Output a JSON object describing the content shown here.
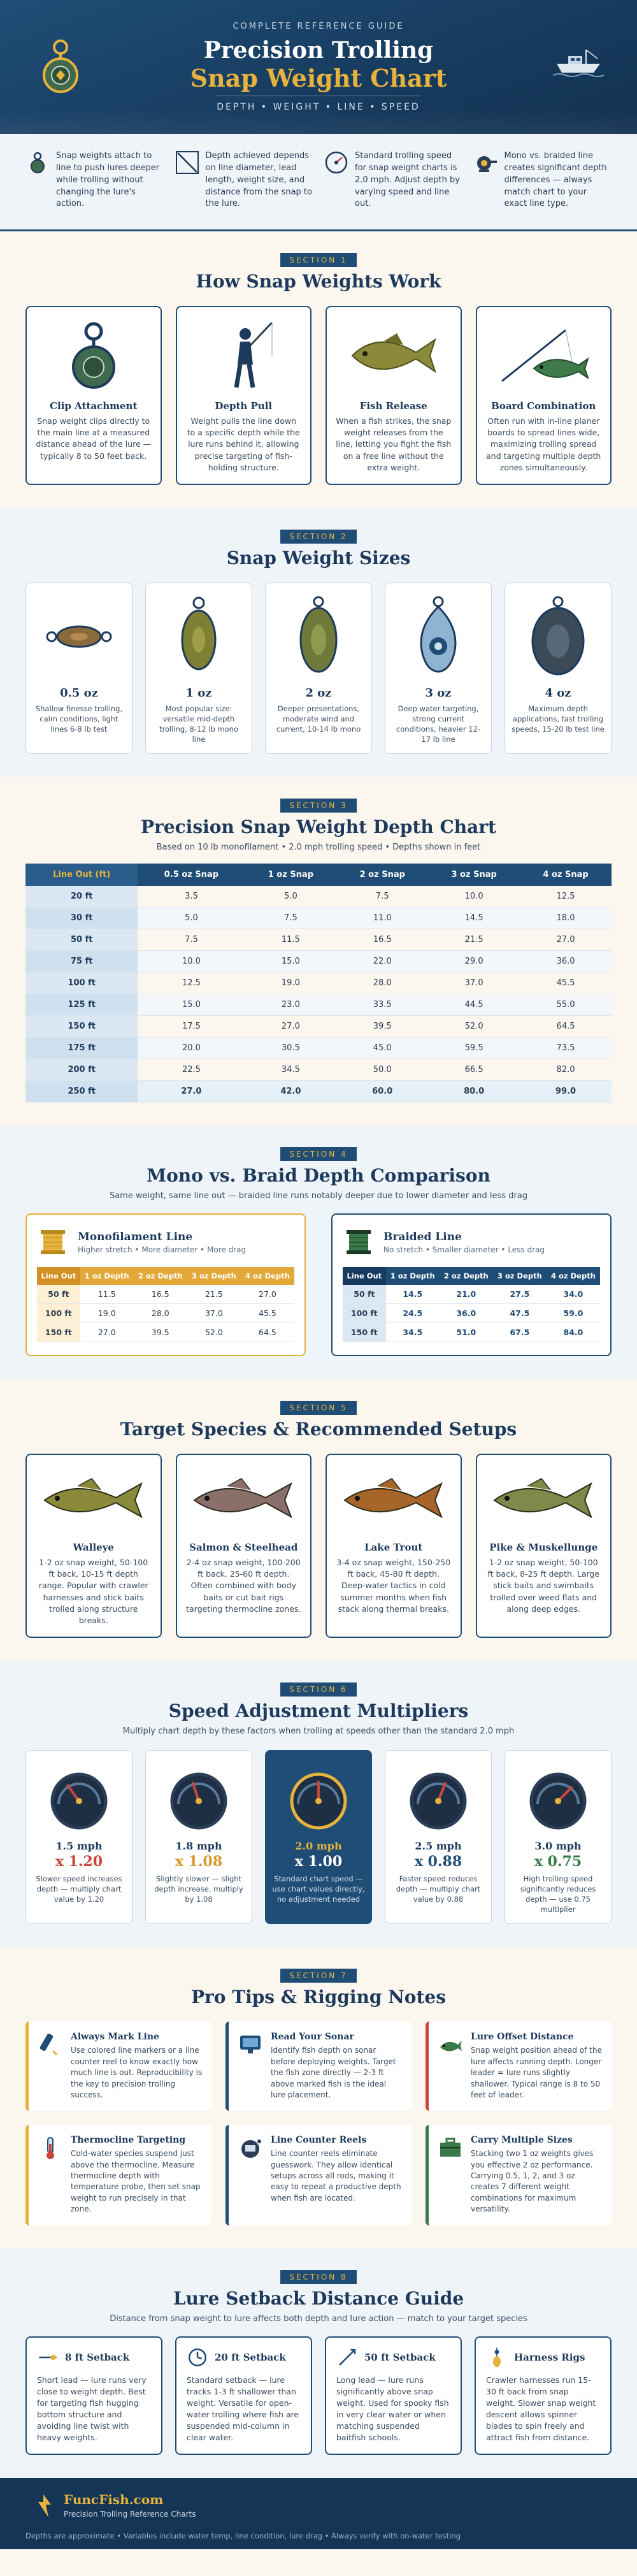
{
  "hero": {
    "pre": "COMPLETE REFERENCE GUIDE",
    "title1": "Precision Trolling",
    "title2": "Snap Weight Chart",
    "subtitle": "DEPTH • WEIGHT • LINE • SPEED"
  },
  "intro": [
    {
      "icon": "snap-clip-icon",
      "text": "Snap weights attach to line to push lures deeper while trolling without changing the lure's action."
    },
    {
      "icon": "depth-angle-icon",
      "text": "Depth achieved depends on line diameter, lead length, weight size, and distance from the snap to the lure."
    },
    {
      "icon": "speed-gauge-icon",
      "text": "Standard trolling speed for snap weight charts is 2.0 mph. Adjust depth by varying speed and line out."
    },
    {
      "icon": "reel-icon",
      "text": "Mono vs. braided line creates significant depth differences — always match chart to your exact line type."
    }
  ],
  "s1": {
    "badge": "SECTION 1",
    "title": "How Snap Weights Work",
    "cards": [
      {
        "title": "Clip Attachment",
        "text": "Snap weight clips directly to the main line at a measured distance ahead of the lure — typically 8 to 50 feet back."
      },
      {
        "title": "Depth Pull",
        "text": "Weight pulls the line down to a specific depth while the lure runs behind it, allowing precise targeting of fish-holding structure."
      },
      {
        "title": "Fish Release",
        "text": "When a fish strikes, the snap weight releases from the line, letting you fight the fish on a free line without the extra weight."
      },
      {
        "title": "Board Combination",
        "text": "Often run with in-line planer boards to spread lines wide, maximizing trolling spread and targeting multiple depth zones simultaneously."
      }
    ]
  },
  "s2": {
    "badge": "SECTION 2",
    "title": "Snap Weight Sizes",
    "cards": [
      {
        "weight": "0.5 oz",
        "text": "Shallow finesse trolling, calm conditions, light lines 6-8 lb test"
      },
      {
        "weight": "1 oz",
        "text": "Most popular size: versatile mid-depth trolling, 8-12 lb mono line"
      },
      {
        "weight": "2 oz",
        "text": "Deeper presentations, moderate wind and current, 10-14 lb mono"
      },
      {
        "weight": "3 oz",
        "text": "Deep water targeting, strong current conditions, heavier 12-17 lb line"
      },
      {
        "weight": "4 oz",
        "text": "Maximum depth applications, fast trolling speeds, 15-20 lb test line"
      }
    ]
  },
  "s3": {
    "badge": "SECTION 3",
    "title": "Precision Snap Weight Depth Chart",
    "subtitle": "Based on 10 lb monofilament • 2.0 mph trolling speed • Depths shown in feet",
    "headers": [
      "Line Out (ft)",
      "0.5 oz Snap",
      "1 oz Snap",
      "2 oz Snap",
      "3 oz Snap",
      "4 oz Snap"
    ],
    "rows": [
      [
        "20 ft",
        "3.5",
        "5.0",
        "7.5",
        "10.0",
        "12.5"
      ],
      [
        "30 ft",
        "5.0",
        "7.5",
        "11.0",
        "14.5",
        "18.0"
      ],
      [
        "50 ft",
        "7.5",
        "11.5",
        "16.5",
        "21.5",
        "27.0"
      ],
      [
        "75 ft",
        "10.0",
        "15.0",
        "22.0",
        "29.0",
        "36.0"
      ],
      [
        "100 ft",
        "12.5",
        "19.0",
        "28.0",
        "37.0",
        "45.5"
      ],
      [
        "125 ft",
        "15.0",
        "23.0",
        "33.5",
        "44.5",
        "55.0"
      ],
      [
        "150 ft",
        "17.5",
        "27.0",
        "39.5",
        "52.0",
        "64.5"
      ],
      [
        "175 ft",
        "20.0",
        "30.5",
        "45.0",
        "59.5",
        "73.5"
      ],
      [
        "200 ft",
        "22.5",
        "34.5",
        "50.0",
        "66.5",
        "82.0"
      ],
      [
        "250 ft",
        "27.0",
        "42.0",
        "60.0",
        "80.0",
        "99.0"
      ]
    ]
  },
  "s4": {
    "badge": "SECTION 4",
    "title": "Mono vs. Braid Depth Comparison",
    "subtitle": "Same weight, same line out — braided line runs notably deeper due to lower diameter and less drag",
    "mono": {
      "title": "Monofilament Line",
      "sub": "Higher stretch • More diameter • More drag",
      "headers": [
        "Line Out",
        "1 oz Depth",
        "2 oz Depth",
        "3 oz Depth",
        "4 oz Depth"
      ],
      "rows": [
        [
          "50 ft",
          "11.5",
          "16.5",
          "21.5",
          "27.0"
        ],
        [
          "100 ft",
          "19.0",
          "28.0",
          "37.0",
          "45.5"
        ],
        [
          "150 ft",
          "27.0",
          "39.5",
          "52.0",
          "64.5"
        ]
      ]
    },
    "braid": {
      "title": "Braided Line",
      "sub": "No stretch • Smaller diameter • Less drag",
      "headers": [
        "Line Out",
        "1 oz Depth",
        "2 oz Depth",
        "3 oz Depth",
        "4 oz Depth"
      ],
      "rows": [
        [
          "50 ft",
          "14.5",
          "21.0",
          "27.5",
          "34.0"
        ],
        [
          "100 ft",
          "24.5",
          "36.0",
          "47.5",
          "59.0"
        ],
        [
          "150 ft",
          "34.5",
          "51.0",
          "67.5",
          "84.0"
        ]
      ]
    }
  },
  "s5": {
    "badge": "SECTION 5",
    "title": "Target Species & Recommended Setups",
    "cards": [
      {
        "title": "Walleye",
        "text": "1-2 oz snap weight, 50-100 ft back, 10-15 ft depth range. Popular with crawler harnesses and stick baits trolled along structure breaks.",
        "color": "#8a8a3a"
      },
      {
        "title": "Salmon & Steelhead",
        "text": "2-4 oz snap weight, 100-200 ft back, 25-60 ft depth. Often combined with body baits or cut bait rigs targeting thermocline zones.",
        "color": "#8b6f6a"
      },
      {
        "title": "Lake Trout",
        "text": "3-4 oz snap weight, 150-250 ft back, 45-80 ft depth. Deep-water tactics in cold summer months when fish stack along thermal breaks.",
        "color": "#a7652a"
      },
      {
        "title": "Pike & Muskellunge",
        "text": "1-2 oz snap weight, 50-100 ft back, 8-25 ft depth. Large stick baits and swimbaits trolled over weed flats and along deep edges.",
        "color": "#7f8a4a"
      }
    ]
  },
  "s6": {
    "badge": "SECTION 6",
    "title": "Speed Adjustment Multipliers",
    "subtitle": "Multiply chart depth by these factors when trolling at speeds other than the standard 2.0 mph",
    "cards": [
      {
        "mph": "1.5 mph",
        "mult": "x 1.20",
        "text": "Slower speed increases depth — multiply chart value by 1.20",
        "color": "#c8473a",
        "needle": 0.3
      },
      {
        "mph": "1.8 mph",
        "mult": "x 1.08",
        "text": "Slightly slower — slight depth increase, multiply by 1.08",
        "color": "#d79a2a",
        "needle": 0.4
      },
      {
        "mph": "2.0 mph",
        "mult": "x 1.00",
        "text": "Standard chart speed — use chart values directly, no adjustment needed",
        "color": "#ffffff",
        "needle": 0.5
      },
      {
        "mph": "2.5 mph",
        "mult": "x 0.88",
        "text": "Faster speed reduces depth — multiply chart value by 0.88",
        "color": "#1f4d76",
        "needle": 0.62
      },
      {
        "mph": "3.0 mph",
        "mult": "x 0.75",
        "text": "High trolling speed significantly reduces depth — use 0.75 multiplier",
        "color": "#3a7a4a",
        "needle": 0.75
      }
    ]
  },
  "s7": {
    "badge": "SECTION 7",
    "title": "Pro Tips & Rigging Notes",
    "tips": [
      {
        "title": "Always Mark Line",
        "text": "Use colored line markers or a line counter reel to know exactly how much line is out. Reproducibility is the key to precision trolling success.",
        "accent": "gold",
        "icon": "marker-icon"
      },
      {
        "title": "Read Your Sonar",
        "text": "Identify fish depth on sonar before deploying weights. Target the fish zone directly — 2-3 ft above marked fish is the ideal lure placement.",
        "accent": "b",
        "icon": "sonar-icon"
      },
      {
        "title": "Lure Offset Distance",
        "text": "Snap weight position ahead of the lure affects running depth. Longer leader = lure runs slightly shallower. Typical range is 8 to 50 feet of leader.",
        "accent": "r",
        "icon": "lure-icon"
      },
      {
        "title": "Thermocline Targeting",
        "text": "Cold-water species suspend just above the thermocline. Measure thermocline depth with temperature probe, then set snap weight to run precisely in that zone.",
        "accent": "gold",
        "icon": "thermometer-icon"
      },
      {
        "title": "Line Counter Reels",
        "text": "Line counter reels eliminate guesswork. They allow identical setups across all rods, making it easy to repeat a productive depth when fish are located.",
        "accent": "b",
        "icon": "line-counter-reel-icon"
      },
      {
        "title": "Carry Multiple Sizes",
        "text": "Stacking two 1 oz weights gives you effective 2 oz performance. Carrying 0.5, 1, 2, and 3 oz creates 7 different weight combinations for maximum versatility.",
        "accent": "g",
        "icon": "tackle-box-icon"
      }
    ]
  },
  "s8": {
    "badge": "SECTION 8",
    "title": "Lure Setback Distance Guide",
    "subtitle": "Distance from snap weight to lure affects both depth and lure action — match to your target species",
    "cards": [
      {
        "title": "8 ft Setback",
        "text": "Short lead — lure runs very close to weight depth. Best for targeting fish hugging bottom structure and avoiding line twist with heavy weights.",
        "icon": "short-lead-icon"
      },
      {
        "title": "20 ft Setback",
        "text": "Standard setback — lure tracks 1-3 ft shallower than weight. Versatile for open-water trolling where fish are suspended mid-column in clear water.",
        "icon": "clock-icon"
      },
      {
        "title": "50 ft Setback",
        "text": "Long lead — lure runs significantly above snap weight. Used for spooky fish in very clear water or when matching suspended baitfish schools.",
        "icon": "long-lead-icon"
      },
      {
        "title": "Harness Rigs",
        "text": "Crawler harnesses run 15-30 ft back from snap weight. Slower snap weight descent allows spinner blades to spin freely and attract fish from distance.",
        "icon": "harness-icon"
      }
    ]
  },
  "footer": {
    "brand": "FuncFish.com",
    "tag": "Precision Trolling Reference Charts",
    "note": "Depths are approximate • Variables include water temp, line condition, lure drag • Always verify with on-water testing"
  }
}
